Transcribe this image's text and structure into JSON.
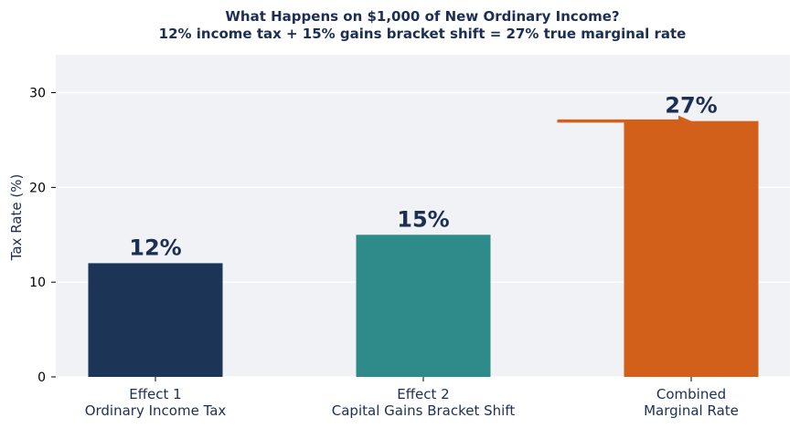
{
  "chart_data": {
    "type": "bar",
    "title": "What Happens on $1,000 of New Ordinary Income?",
    "subtitle": "12% income tax + 15% gains bracket shift = 27% true marginal rate",
    "xlabel": "",
    "ylabel": "Tax Rate (%)",
    "ylim": [
      0,
      34
    ],
    "yticks": [
      0,
      10,
      20,
      30
    ],
    "grid": true,
    "categories": [
      [
        "Effect 1",
        "Ordinary Income Tax"
      ],
      [
        "Effect 2",
        "Capital Gains Bracket Shift"
      ],
      [
        "Combined",
        "Marginal Rate"
      ]
    ],
    "values": [
      12,
      15,
      27
    ],
    "data_labels": [
      "12%",
      "15%",
      "27%"
    ],
    "colors": [
      "#1c3456",
      "#2e8b8a",
      "#d2601a"
    ],
    "background": "#f1f2f6",
    "gridline_color": "#ffffff",
    "annotation": {
      "type": "arrow",
      "y": 27,
      "x_from_category": 1.5,
      "x_to_category": 2,
      "color": "#d2601a"
    }
  }
}
